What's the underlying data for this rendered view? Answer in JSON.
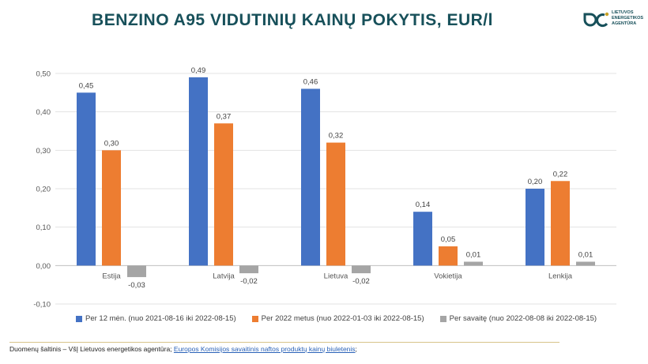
{
  "title": "BENZINO A95 VIDUTINIŲ KAINŲ POKYTIS, EUR/l",
  "logo": {
    "lines": [
      "LIETUVOS",
      "ENERGETIKOS",
      "AGENTŪRA"
    ]
  },
  "chart_data": {
    "type": "bar",
    "categories": [
      "Estija",
      "Latvija",
      "Lietuva",
      "Vokietija",
      "Lenkija"
    ],
    "series": [
      {
        "name": "Per 12 mėn. (nuo 2021-08-16 iki 2022-08-15)",
        "color": "#4472c4",
        "values": [
          0.45,
          0.49,
          0.46,
          0.14,
          0.2
        ],
        "labels": [
          "0,45",
          "0,49",
          "0,46",
          "0,14",
          "0,20"
        ]
      },
      {
        "name": "Per 2022 metus (nuo 2022-01-03 iki 2022-08-15)",
        "color": "#ed7d31",
        "values": [
          0.3,
          0.37,
          0.32,
          0.05,
          0.22
        ],
        "labels": [
          "0,30",
          "0,37",
          "0,32",
          "0,05",
          "0,22"
        ]
      },
      {
        "name": "Per savaitę (nuo 2022-08-08 iki 2022-08-15)",
        "color": "#a5a5a5",
        "values": [
          -0.03,
          -0.02,
          -0.02,
          0.01,
          0.01
        ],
        "labels": [
          "-0,03",
          "-0,02",
          "-0,02",
          "0,01",
          "0,01"
        ]
      }
    ],
    "ylim": [
      -0.1,
      0.5
    ],
    "yticks": [
      -0.1,
      0.0,
      0.1,
      0.2,
      0.3,
      0.4,
      0.5
    ],
    "ytick_labels": [
      "-0,10",
      "0,00",
      "0,10",
      "0,20",
      "0,30",
      "0,40",
      "0,50"
    ],
    "grid": true,
    "legend_position": "bottom"
  },
  "source": {
    "prefix": "Duomenų šaltinis – VšĮ Lietuvos energetikos agentūra; ",
    "link": "Europos Komisijos savaitinis naftos produktų kainų biuletenis",
    "suffix": ";"
  }
}
